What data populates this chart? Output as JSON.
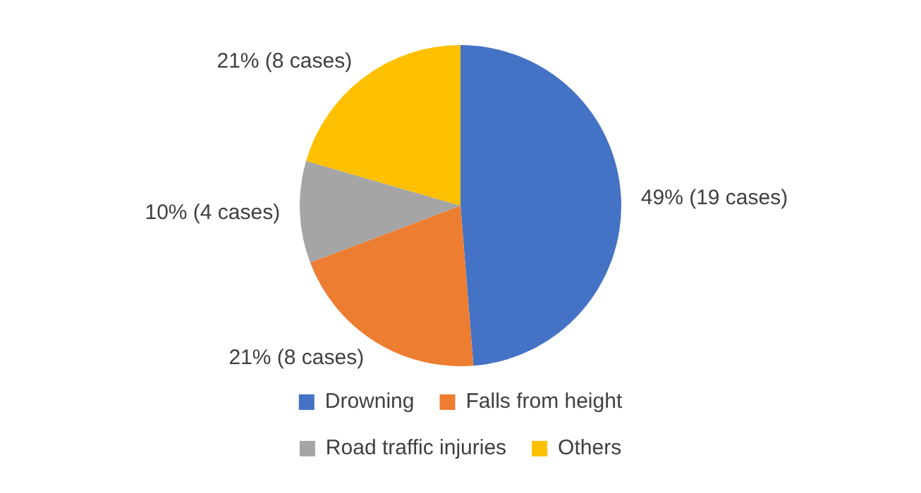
{
  "chart_data": {
    "type": "pie",
    "categories": [
      "Drowning",
      "Falls from height",
      "Road traffic injuries",
      "Others"
    ],
    "values": [
      19,
      8,
      4,
      8
    ],
    "colors": [
      "#4472c4",
      "#ed7d31",
      "#a5a5a5",
      "#ffc000"
    ],
    "value_labels": [
      "49% (19 cases)",
      "21% (8 cases)",
      "10% (4 cases)",
      "21% (8 cases)"
    ],
    "legend": "bottom"
  }
}
